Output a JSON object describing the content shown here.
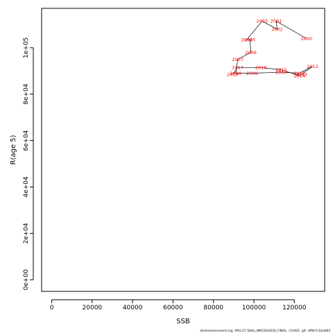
{
  "chart_data": {
    "type": "line",
    "xlabel": "SSB",
    "ylabel": "R(age 5)",
    "xlim": [
      -5000,
      135000
    ],
    "ylim": [
      -5000,
      117000
    ],
    "x_ticks": [
      0,
      20000,
      40000,
      60000,
      80000,
      100000,
      120000
    ],
    "x_tick_labels": [
      "0",
      "20000",
      "40000",
      "60000",
      "80000",
      "100000",
      "120000"
    ],
    "y_ticks": [
      0,
      20000,
      40000,
      60000,
      80000,
      100000
    ],
    "y_tick_labels": [
      "0e+00",
      "2e+04",
      "4e+04",
      "6e+04",
      "8e+04",
      "1e+05"
    ],
    "grid": false,
    "series": [
      {
        "points": [
          {
            "year": "2000",
            "ssb": 126000,
            "rec": 104000
          },
          {
            "year": "2001",
            "ssb": 111000,
            "rec": 111500
          },
          {
            "year": "2002",
            "ssb": 111500,
            "rec": 108000
          },
          {
            "year": "2003",
            "ssb": 104000,
            "rec": 111500
          },
          {
            "year": "2004",
            "ssb": 96500,
            "rec": 103500
          },
          {
            "year": "2005",
            "ssb": 98000,
            "rec": 103500
          },
          {
            "year": "2006",
            "ssb": 98500,
            "rec": 98000
          },
          {
            "year": "2007",
            "ssb": 92000,
            "rec": 95000
          },
          {
            "year": "2008",
            "ssb": 91000,
            "rec": 89000
          },
          {
            "year": "2009",
            "ssb": 99000,
            "rec": 89000
          },
          {
            "year": "2010",
            "ssb": 113500,
            "rec": 89500
          },
          {
            "year": "2011",
            "ssb": 122500,
            "rec": 89000
          },
          {
            "year": "2012",
            "ssb": 129000,
            "rec": 92000
          },
          {
            "year": "2013",
            "ssb": 123500,
            "rec": 88500
          },
          {
            "year": "2014",
            "ssb": 122500,
            "rec": 88000
          },
          {
            "year": "2015",
            "ssb": 113500,
            "rec": 90500
          },
          {
            "year": "2016",
            "ssb": 103500,
            "rec": 91500
          },
          {
            "year": "2017",
            "ssb": 92000,
            "rec": 91500
          },
          {
            "year": "2018",
            "ssb": 89500,
            "rec": 88500
          }
        ]
      }
    ]
  },
  "footer": {
    "text": "stockassessment.org, ARU.27.5b6a_WKGSS2020_FINAL, r11921, git: df0b7c1bcb83"
  }
}
